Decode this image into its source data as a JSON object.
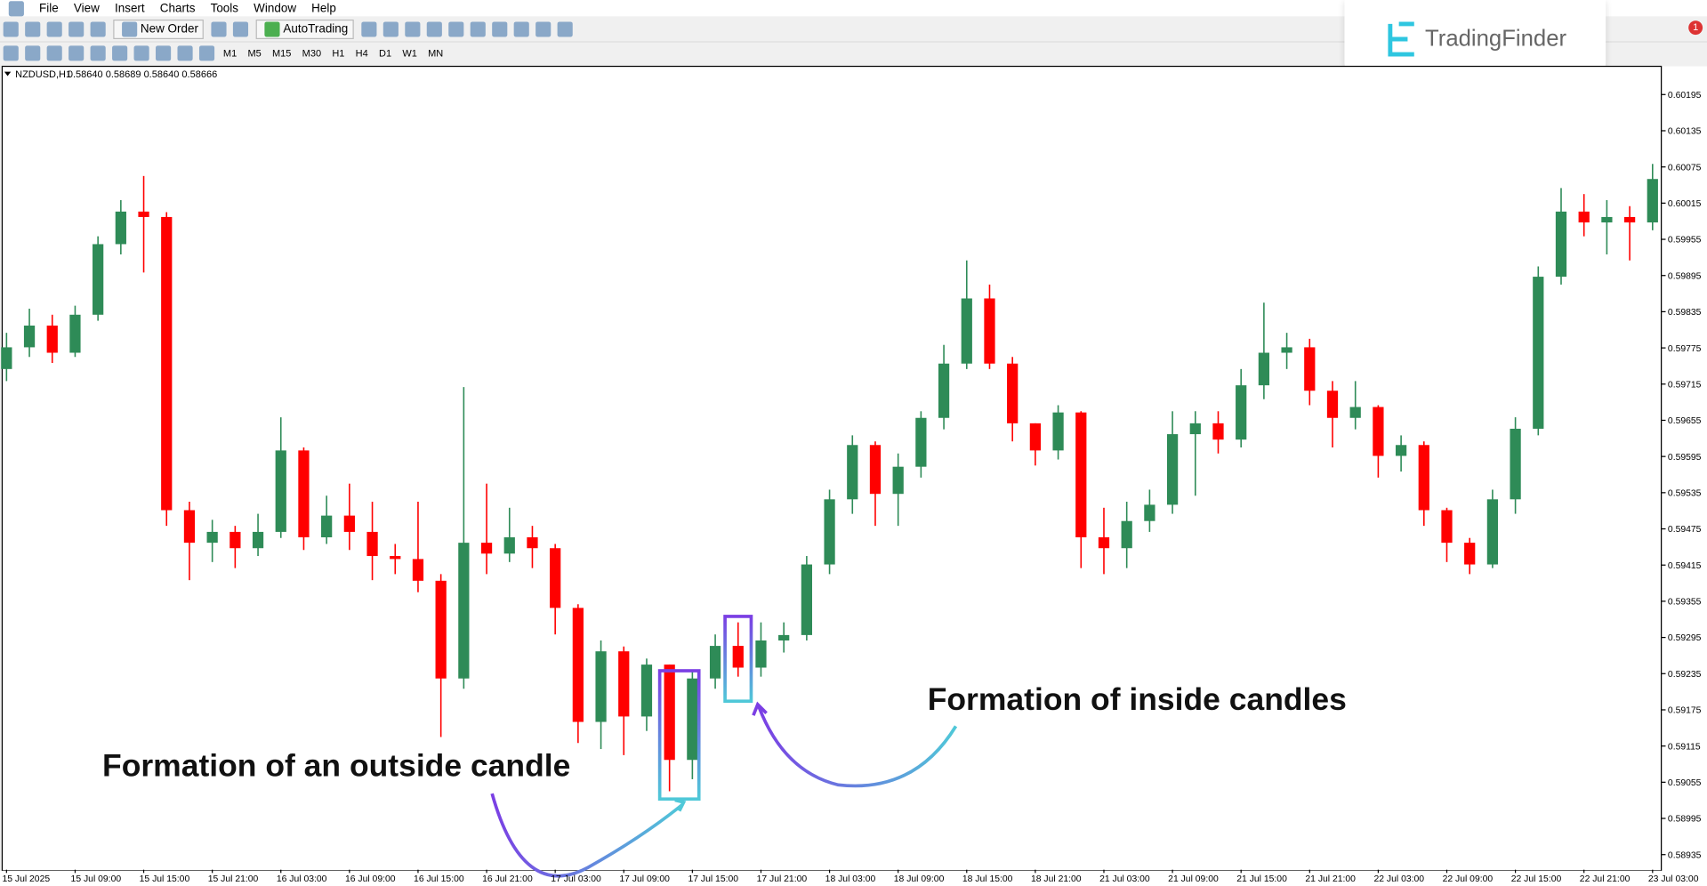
{
  "ui": {
    "menu": [
      "File",
      "View",
      "Insert",
      "Charts",
      "Tools",
      "Window",
      "Help"
    ],
    "new_order": "New Order",
    "auto_trading": "AutoTrading",
    "timeframes": [
      "M1",
      "M5",
      "M15",
      "M30",
      "H1",
      "H4",
      "D1",
      "W1",
      "MN"
    ],
    "logo": "TradingFinder",
    "notifications": "1"
  },
  "chart_data": {
    "type": "candlestick",
    "symbol": "NZDUSD,H1",
    "quote": "0.58640 0.58689 0.58640 0.58666",
    "annotations": [
      "Formation of an outside candle",
      "Formation of inside candles"
    ],
    "up_color": "#2e8b57",
    "down_color": "#ff0000",
    "grid": false,
    "ylim": [
      0.5891,
      0.6024
    ],
    "yticks": [
      0.60195,
      0.60135,
      0.60075,
      0.60015,
      0.59955,
      0.59895,
      0.59835,
      0.59775,
      0.59715,
      0.59655,
      0.59595,
      0.59535,
      0.59475,
      0.59415,
      0.59355,
      0.59295,
      0.59235,
      0.59175,
      0.59115,
      0.59055,
      0.58995,
      0.58935
    ],
    "x_labels": [
      "15 Jul 2025",
      "15 Jul 09:00",
      "15 Jul 15:00",
      "15 Jul 21:00",
      "16 Jul 03:00",
      "16 Jul 09:00",
      "16 Jul 15:00",
      "16 Jul 21:00",
      "17 Jul 03:00",
      "17 Jul 09:00",
      "17 Jul 15:00",
      "17 Jul 21:00",
      "18 Jul 03:00",
      "18 Jul 09:00",
      "18 Jul 15:00",
      "18 Jul 21:00",
      "21 Jul 03:00",
      "21 Jul 09:00",
      "21 Jul 15:00",
      "21 Jul 21:00",
      "22 Jul 03:00",
      "22 Jul 09:00",
      "22 Jul 15:00",
      "22 Jul 21:00",
      "23 Jul 03:00"
    ],
    "open": [
      0.5974,
      0.59776,
      0.59812,
      0.59767,
      0.5983,
      0.59947,
      0.60001,
      0.59992,
      0.59506,
      0.59452,
      0.5947,
      0.59443,
      0.5947,
      0.59605,
      0.59461,
      0.59497,
      0.5947,
      0.5943,
      0.59425,
      0.59389,
      0.59227,
      0.59452,
      0.59434,
      0.59461,
      0.59443,
      0.59344,
      0.59155,
      0.59272,
      0.59164,
      0.5925,
      0.59092,
      0.59227,
      0.59281,
      0.59245,
      0.5929,
      0.59299,
      0.59416,
      0.59524,
      0.59614,
      0.59533,
      0.59578,
      0.59659,
      0.59749,
      0.59857,
      0.59749,
      0.5965,
      0.59605,
      0.59668,
      0.59461,
      0.59443,
      0.59488,
      0.59515,
      0.59632,
      0.5965,
      0.59623,
      0.59713,
      0.59767,
      0.59776,
      0.59704,
      0.59659,
      0.59677,
      0.59596,
      0.59614,
      0.59506,
      0.59452,
      0.59416,
      0.59524,
      0.59641,
      0.59893,
      0.60001,
      0.59983,
      0.59992,
      0.59983
    ],
    "high": [
      0.598,
      0.5984,
      0.5983,
      0.59845,
      0.5996,
      0.6002,
      0.6006,
      0.6,
      0.5952,
      0.5949,
      0.5948,
      0.595,
      0.5966,
      0.5961,
      0.5953,
      0.5955,
      0.5952,
      0.5945,
      0.5952,
      0.594,
      0.5971,
      0.5955,
      0.5951,
      0.5948,
      0.5945,
      0.5935,
      0.5929,
      0.5928,
      0.5926,
      0.5925,
      0.5924,
      0.593,
      0.5932,
      0.5932,
      0.5932,
      0.5943,
      0.5954,
      0.5963,
      0.5962,
      0.596,
      0.5967,
      0.5978,
      0.5992,
      0.5988,
      0.5976,
      0.5965,
      0.5968,
      0.5967,
      0.5951,
      0.5952,
      0.5954,
      0.5967,
      0.5967,
      0.5967,
      0.5974,
      0.5985,
      0.598,
      0.5979,
      0.5972,
      0.5972,
      0.5968,
      0.5963,
      0.5962,
      0.5951,
      0.5946,
      0.5954,
      0.5966,
      0.5991,
      0.6004,
      0.6003,
      0.6002,
      0.6001,
      0.6008
    ],
    "low": [
      0.5972,
      0.5976,
      0.5975,
      0.5976,
      0.5982,
      0.5993,
      0.599,
      0.5948,
      0.5939,
      0.5942,
      0.5941,
      0.5943,
      0.5946,
      0.5944,
      0.5945,
      0.5944,
      0.5939,
      0.594,
      0.5937,
      0.5913,
      0.5921,
      0.594,
      0.5942,
      0.5941,
      0.593,
      0.5912,
      0.5911,
      0.591,
      0.5914,
      0.5904,
      0.5906,
      0.5921,
      0.5923,
      0.5923,
      0.5927,
      0.5929,
      0.594,
      0.595,
      0.5948,
      0.5948,
      0.5956,
      0.5964,
      0.5974,
      0.5974,
      0.5962,
      0.5958,
      0.5959,
      0.5941,
      0.594,
      0.5941,
      0.5947,
      0.595,
      0.5953,
      0.596,
      0.5961,
      0.5969,
      0.5974,
      0.5968,
      0.5961,
      0.5964,
      0.5956,
      0.5957,
      0.5948,
      0.5942,
      0.594,
      0.5941,
      0.595,
      0.5963,
      0.5988,
      0.5996,
      0.5993,
      0.5992,
      0.5997
    ],
    "close": [
      0.59776,
      0.59812,
      0.59767,
      0.5983,
      0.59947,
      0.60001,
      0.59992,
      0.59506,
      0.59452,
      0.5947,
      0.59443,
      0.5947,
      0.59605,
      0.59461,
      0.59497,
      0.5947,
      0.5943,
      0.59425,
      0.59389,
      0.59227,
      0.59452,
      0.59434,
      0.59461,
      0.59443,
      0.59344,
      0.59155,
      0.59272,
      0.59164,
      0.5925,
      0.59092,
      0.59227,
      0.59281,
      0.59245,
      0.5929,
      0.59299,
      0.59416,
      0.59524,
      0.59614,
      0.59533,
      0.59578,
      0.59659,
      0.59749,
      0.59857,
      0.59749,
      0.5965,
      0.59605,
      0.59668,
      0.59461,
      0.59443,
      0.59488,
      0.59515,
      0.59632,
      0.5965,
      0.59623,
      0.59713,
      0.59767,
      0.59776,
      0.59704,
      0.59659,
      0.59677,
      0.59596,
      0.59614,
      0.59506,
      0.59452,
      0.59416,
      0.59524,
      0.59641,
      0.59893,
      0.60001,
      0.59983,
      0.59992,
      0.59983,
      0.60055
    ]
  }
}
